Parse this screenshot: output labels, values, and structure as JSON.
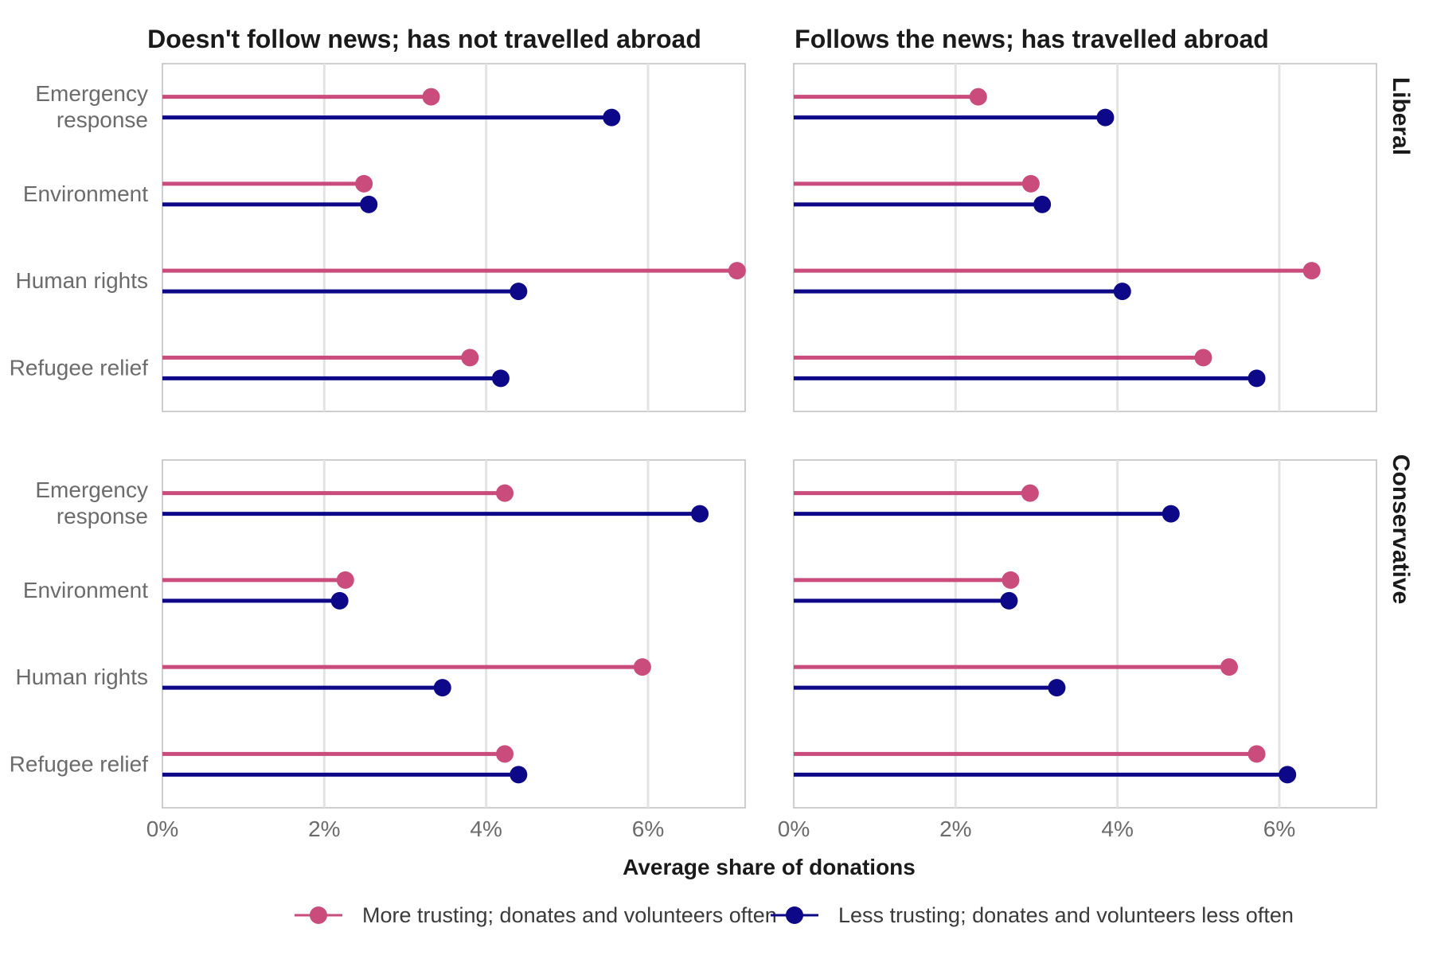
{
  "chart_data": {
    "type": "lollipop",
    "xlabel": "Average share of donations",
    "xlim": [
      0,
      7.2
    ],
    "xticks": [
      0,
      2,
      4,
      6
    ],
    "tick_format": "{v}%",
    "grid": true,
    "legend_placement": "bottom",
    "categories": [
      "Emergency response",
      "Environment",
      "Human rights",
      "Refugee relief"
    ],
    "columns": [
      "Doesn't follow news; has not travelled abroad",
      "Follows the news; has travelled abroad"
    ],
    "rows": [
      "Liberal",
      "Conservative"
    ],
    "series": [
      {
        "name": "More trusting; donates and volunteers often",
        "color": "#c94c7c"
      },
      {
        "name": "Less trusting; donates and volunteers less often",
        "color": "#0d0887"
      }
    ],
    "panels": [
      {
        "row": "Liberal",
        "column": "Doesn't follow news; has not travelled abroad",
        "values": {
          "More trusting; donates and volunteers often": [
            3.32,
            2.49,
            7.1,
            3.8
          ],
          "Less trusting; donates and volunteers less often": [
            5.55,
            2.55,
            4.4,
            4.18
          ]
        }
      },
      {
        "row": "Liberal",
        "column": "Follows the news; has travelled abroad",
        "values": {
          "More trusting; donates and volunteers often": [
            2.28,
            2.93,
            6.4,
            5.06
          ],
          "Less trusting; donates and volunteers less often": [
            3.85,
            3.07,
            4.06,
            5.72
          ]
        }
      },
      {
        "row": "Conservative",
        "column": "Doesn't follow news; has not travelled abroad",
        "values": {
          "More trusting; donates and volunteers often": [
            4.23,
            2.26,
            5.93,
            4.23
          ],
          "Less trusting; donates and volunteers less often": [
            6.64,
            2.19,
            3.46,
            4.4
          ]
        }
      },
      {
        "row": "Conservative",
        "column": "Follows the news; has travelled abroad",
        "values": {
          "More trusting; donates and volunteers often": [
            2.92,
            2.68,
            5.38,
            5.72
          ],
          "Less trusting; donates and volunteers less often": [
            4.66,
            2.66,
            3.25,
            6.1
          ]
        }
      }
    ]
  }
}
